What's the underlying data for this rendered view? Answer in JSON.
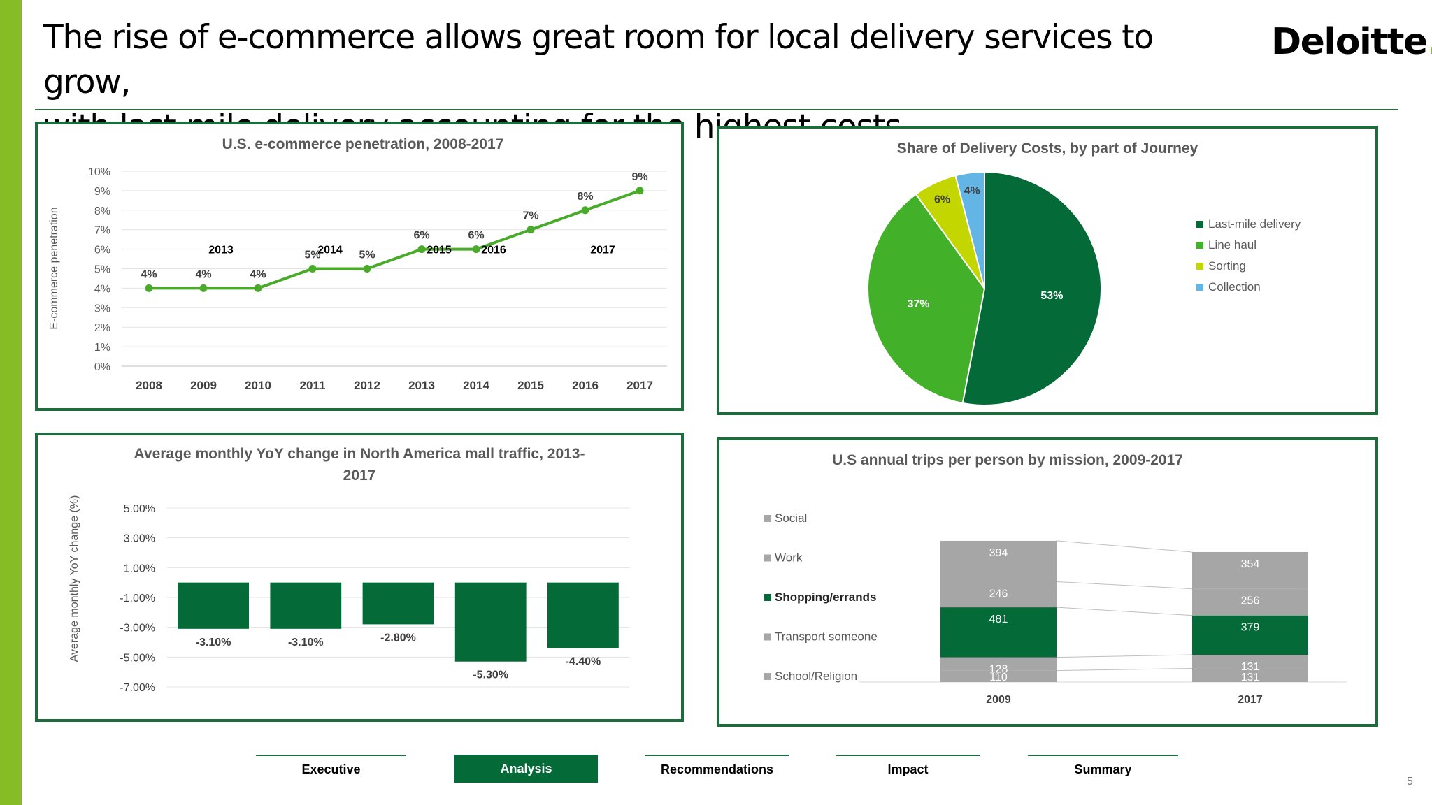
{
  "slide": {
    "title_line1": "The rise of e-commerce allows great room for local delivery services to grow,",
    "title_line2": "with last-mile delivery accounting for the highest costs",
    "logo_text": "Deloitte",
    "logo_dot": ".",
    "page_number": "5",
    "accent_color": "#86bc25",
    "dark_green": "#046a38"
  },
  "nav": {
    "items": [
      {
        "label": "Executive"
      },
      {
        "label": "Analysis"
      },
      {
        "label": "Recommendations"
      },
      {
        "label": "Impact"
      },
      {
        "label": "Summary"
      }
    ],
    "active_label": "Analysis"
  },
  "chart_data": [
    {
      "id": "ecommerce",
      "type": "line",
      "title": "U.S. e-commerce penetration, 2008-2017",
      "ylabel": "E-commerce penetration",
      "xlabel": "",
      "ylim": [
        0,
        10
      ],
      "yticks": [
        "0%",
        "1%",
        "2%",
        "3%",
        "4%",
        "5%",
        "6%",
        "7%",
        "8%",
        "9%",
        "10%"
      ],
      "categories": [
        "2008",
        "2009",
        "2010",
        "2011",
        "2012",
        "2013",
        "2014",
        "2015",
        "2016",
        "2017"
      ],
      "values": [
        4,
        4,
        4,
        5,
        5,
        6,
        6,
        7,
        8,
        9
      ],
      "data_labels": [
        "4%",
        "4%",
        "4%",
        "5%",
        "5%",
        "6%",
        "6%",
        "7%",
        "8%",
        "9%"
      ],
      "annotations": [
        {
          "text": "2013",
          "x": "2009",
          "y": 6
        },
        {
          "text": "2014",
          "x": "2011",
          "y": 6
        },
        {
          "text": "2015",
          "x": "2013",
          "y": 6
        },
        {
          "text": "2016",
          "x": "2014",
          "y": 6
        },
        {
          "text": "2017",
          "x": "2016",
          "y": 6
        }
      ],
      "color": "#4aab2a",
      "grid": true
    },
    {
      "id": "delivery",
      "type": "pie",
      "title": "Share of Delivery Costs, by part of Journey",
      "slices": [
        {
          "label": "Last-mile delivery",
          "value": 53,
          "text": "53%",
          "color": "#046a38"
        },
        {
          "label": "Line haul",
          "value": 37,
          "text": "37%",
          "color": "#43b02a"
        },
        {
          "label": "Sorting",
          "value": 6,
          "text": "6%",
          "color": "#c4d600"
        },
        {
          "label": "Collection",
          "value": 4,
          "text": "4%",
          "color": "#62b5e5"
        }
      ],
      "legend": "right"
    },
    {
      "id": "mall",
      "type": "bar",
      "title_line1": "Average monthly YoY change in North America mall traffic, 2013-",
      "title_line2": "2017",
      "ylabel": "Average monthly YoY change (%)",
      "ylim": [
        -7,
        5
      ],
      "yticks": [
        "5.00%",
        "3.00%",
        "1.00%",
        "-1.00%",
        "-3.00%",
        "-5.00%",
        "-7.00%"
      ],
      "ytick_values": [
        5,
        3,
        1,
        -1,
        -3,
        -5,
        -7
      ],
      "values": [
        -3.1,
        -3.1,
        -2.8,
        -5.3,
        -4.4
      ],
      "data_labels": [
        "-3.10%",
        "-3.10%",
        "-2.80%",
        "-5.30%",
        "-4.40%"
      ],
      "color": "#046a38",
      "grid": true
    },
    {
      "id": "trips",
      "type": "bar",
      "stacked": true,
      "title": "U.S annual trips per person by mission, 2009-2017",
      "categories": [
        "2009",
        "2017"
      ],
      "series": [
        {
          "name": "School/Religion",
          "values": [
            110,
            131
          ],
          "color": "#a6a6a6"
        },
        {
          "name": "Transport someone",
          "values": [
            128,
            131
          ],
          "color": "#a6a6a6"
        },
        {
          "name": "Shopping/errands",
          "values": [
            481,
            379
          ],
          "color": "#046a38"
        },
        {
          "name": "Work",
          "values": [
            246,
            256
          ],
          "color": "#a6a6a6"
        },
        {
          "name": "Social",
          "values": [
            394,
            354
          ],
          "color": "#a6a6a6"
        }
      ],
      "legend_order": [
        "Social",
        "Work",
        "Shopping/errands",
        "Transport someone",
        "School/Religion"
      ],
      "legend": "left"
    }
  ]
}
